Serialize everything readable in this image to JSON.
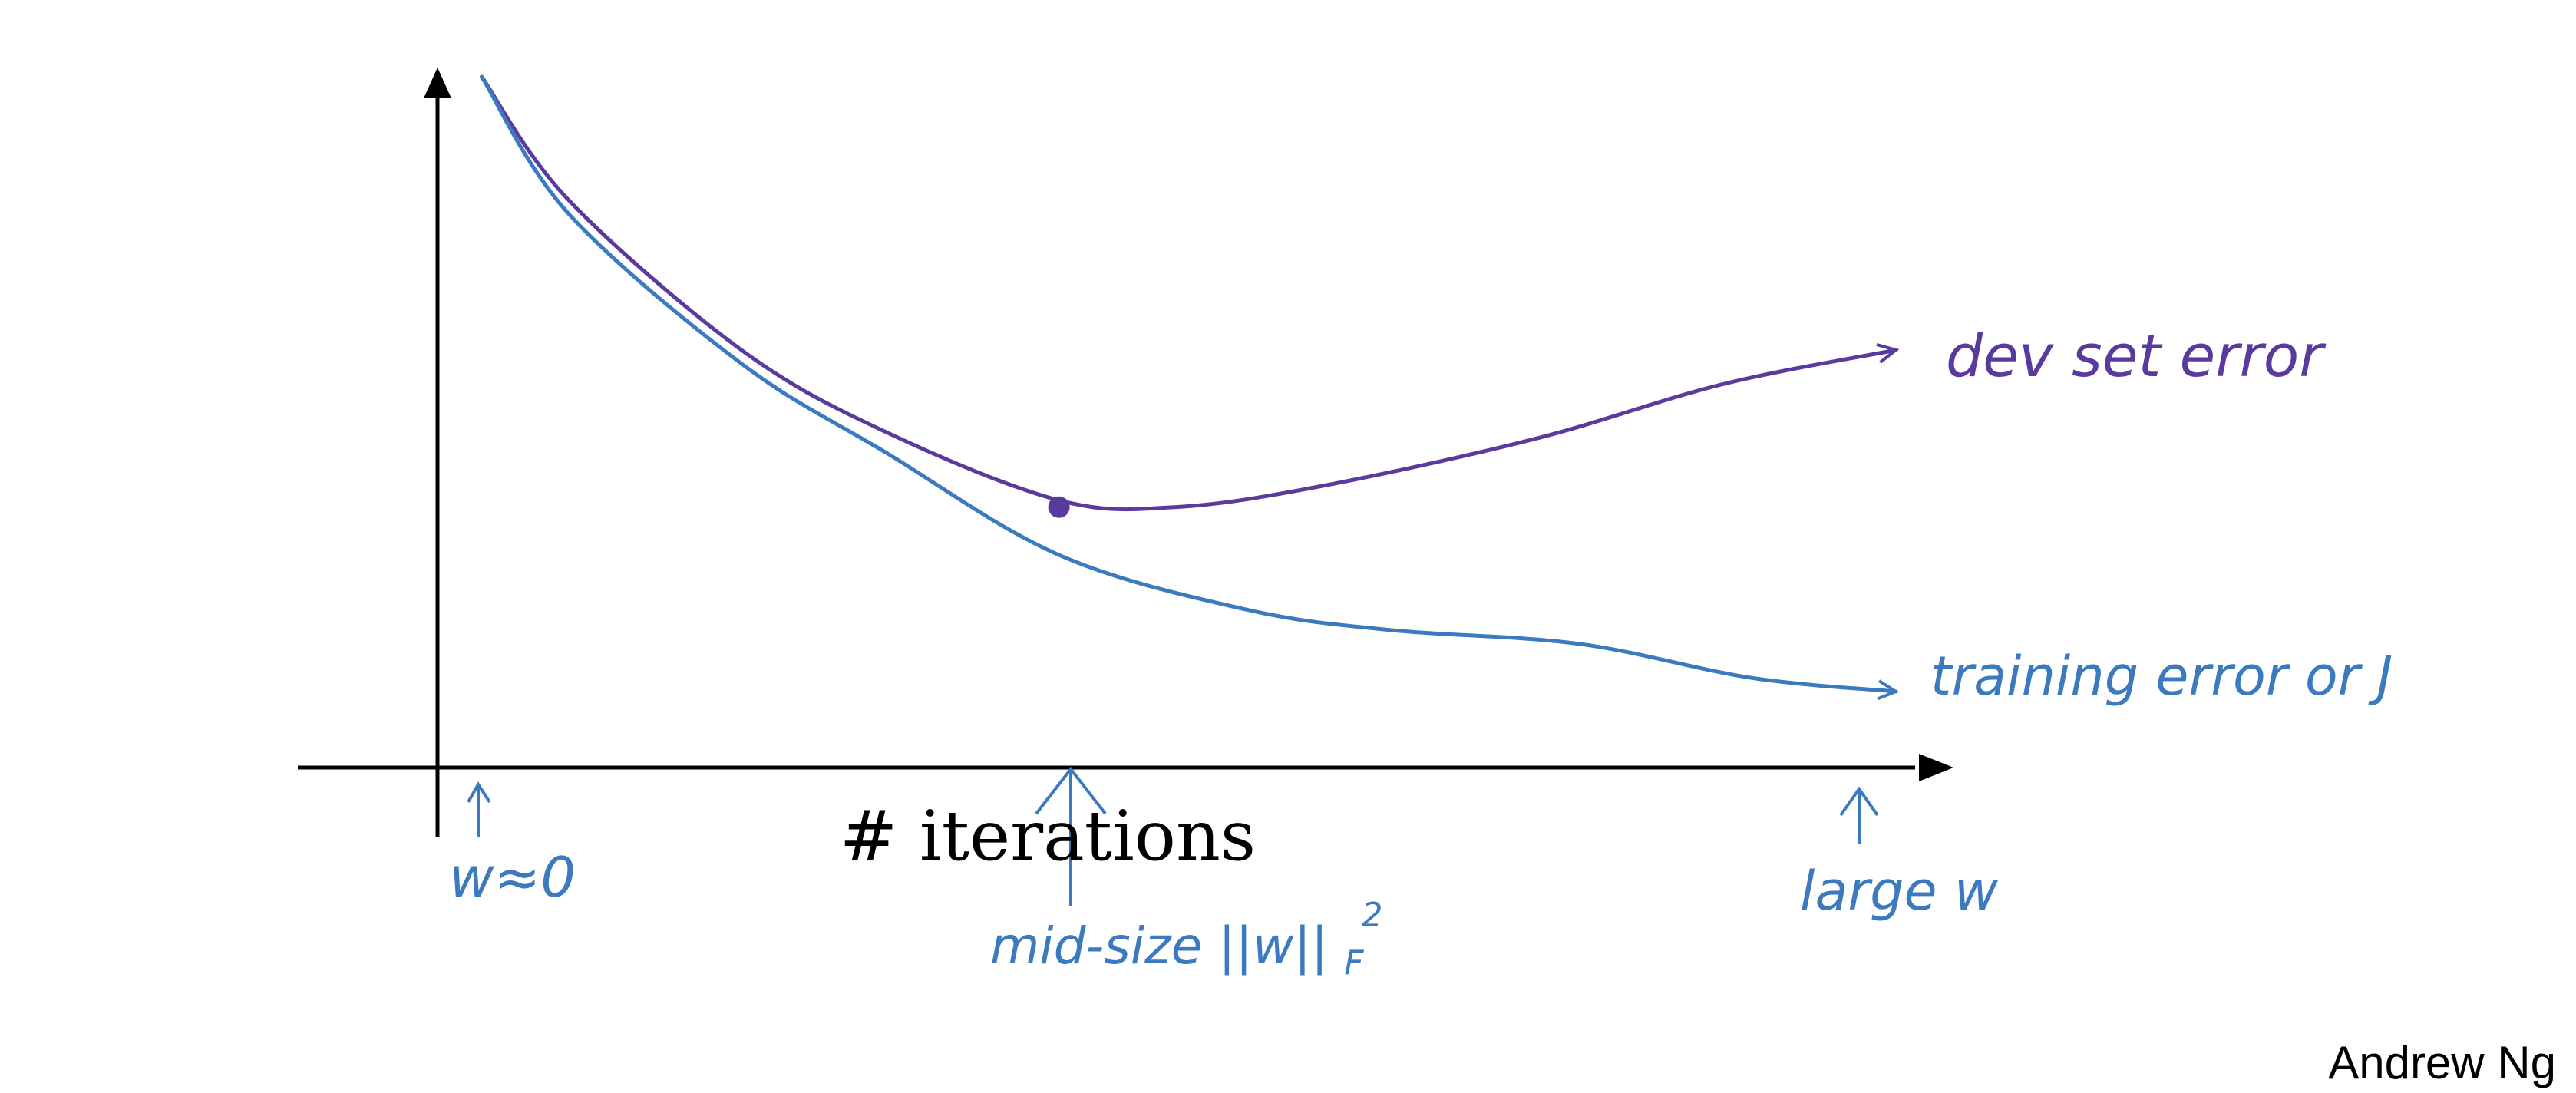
{
  "colors": {
    "axis": "#000000",
    "dev_curve": "#5b3a9e",
    "train_curve": "#3c7ac0",
    "annotation": "#3c7ac0",
    "dev_label": "#5b3a9e"
  },
  "chart_data": {
    "type": "line",
    "title": "",
    "xlabel": "# iterations",
    "ylabel": "",
    "grid": false,
    "legend": "none",
    "series": [
      {
        "name": "dev set error",
        "label_text": "dev set error",
        "points": [
          [
            0.02,
            1.0
          ],
          [
            0.08,
            0.82
          ],
          [
            0.2,
            0.6
          ],
          [
            0.3,
            0.48
          ],
          [
            0.42,
            0.38
          ],
          [
            0.5,
            0.37
          ],
          [
            0.6,
            0.4
          ],
          [
            0.75,
            0.47
          ],
          [
            0.88,
            0.55
          ],
          [
            1.0,
            0.6
          ]
        ],
        "marker_at": [
          0.42,
          0.37
        ]
      },
      {
        "name": "training error or J",
        "label_text": "training error or J",
        "points": [
          [
            0.02,
            1.0
          ],
          [
            0.08,
            0.8
          ],
          [
            0.2,
            0.58
          ],
          [
            0.3,
            0.45
          ],
          [
            0.42,
            0.3
          ],
          [
            0.55,
            0.22
          ],
          [
            0.65,
            0.19
          ],
          [
            0.78,
            0.17
          ],
          [
            0.9,
            0.12
          ],
          [
            1.0,
            0.1
          ]
        ]
      }
    ],
    "x_annotations": [
      {
        "text_main": "w≈0",
        "x": 0.03
      },
      {
        "text_main": "mid-size ||w||",
        "sup": "2",
        "sub": "F",
        "x": 0.42
      },
      {
        "text_main": "large w",
        "x": 0.98
      }
    ]
  },
  "credit": "Andrew Ng"
}
